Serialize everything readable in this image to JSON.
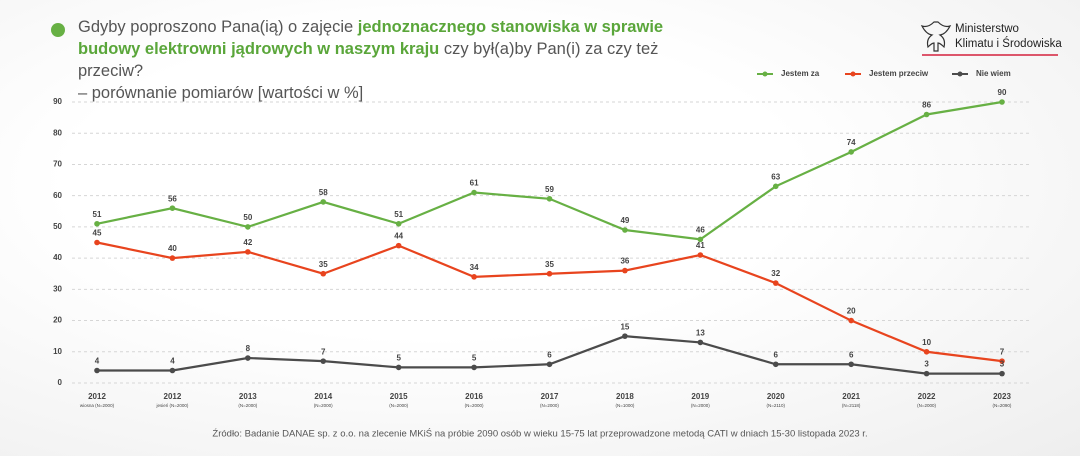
{
  "chart_data": {
    "type": "line",
    "title": [
      "Gdyby poproszono Pana(ią) o zajęcie ",
      "jednoznacznego stanowiska w sprawie budowy elektrowni jądrowych w naszym kraju",
      " czy był(a)by Pan(i) za czy też przeciw?"
    ],
    "subtitle": "– porównanie pomiarów [wartości w %]",
    "logo": [
      "Ministerstwo",
      "Klimatu i Środowiska"
    ],
    "source": "Źródło: Badanie DANAE sp. z o.o. na zlecenie MKiŚ na próbie 2090 osób w wieku 15-75 lat przeprowadzone metodą CATI w dniach 15-30 listopada 2023 r.",
    "categories": [
      "2012",
      "2012",
      "2013",
      "2014",
      "2015",
      "2016",
      "2017",
      "2018",
      "2019",
      "2020",
      "2021",
      "2022",
      "2023"
    ],
    "category_notes": [
      "wiosna (N=2000)",
      "jesień (N=2000)",
      "(N=2000)",
      "(N=2000)",
      "(N=2000)",
      "(N=2000)",
      "(N=2000)",
      "(N=1000)",
      "(N=2000)",
      "(N=2110)",
      "(N=2118)",
      "(N=2000)",
      "(N=2090)"
    ],
    "series": [
      {
        "name": "Jestem za",
        "color": "#67b044",
        "values": [
          51,
          56,
          50,
          58,
          51,
          61,
          59,
          49,
          46,
          63,
          74,
          86,
          90
        ]
      },
      {
        "name": "Jestem przeciw",
        "color": "#e8441e",
        "values": [
          45,
          40,
          42,
          35,
          44,
          34,
          35,
          36,
          41,
          32,
          20,
          10,
          7
        ]
      },
      {
        "name": "Nie wiem",
        "color": "#4b4b4b",
        "values": [
          4,
          4,
          8,
          7,
          5,
          5,
          6,
          15,
          13,
          6,
          6,
          3,
          3
        ]
      }
    ],
    "ylim": [
      0,
      90
    ],
    "yticks": [
      0,
      10,
      20,
      30,
      40,
      50,
      60,
      70,
      80,
      90
    ],
    "grid": true,
    "legend": "top-right"
  }
}
